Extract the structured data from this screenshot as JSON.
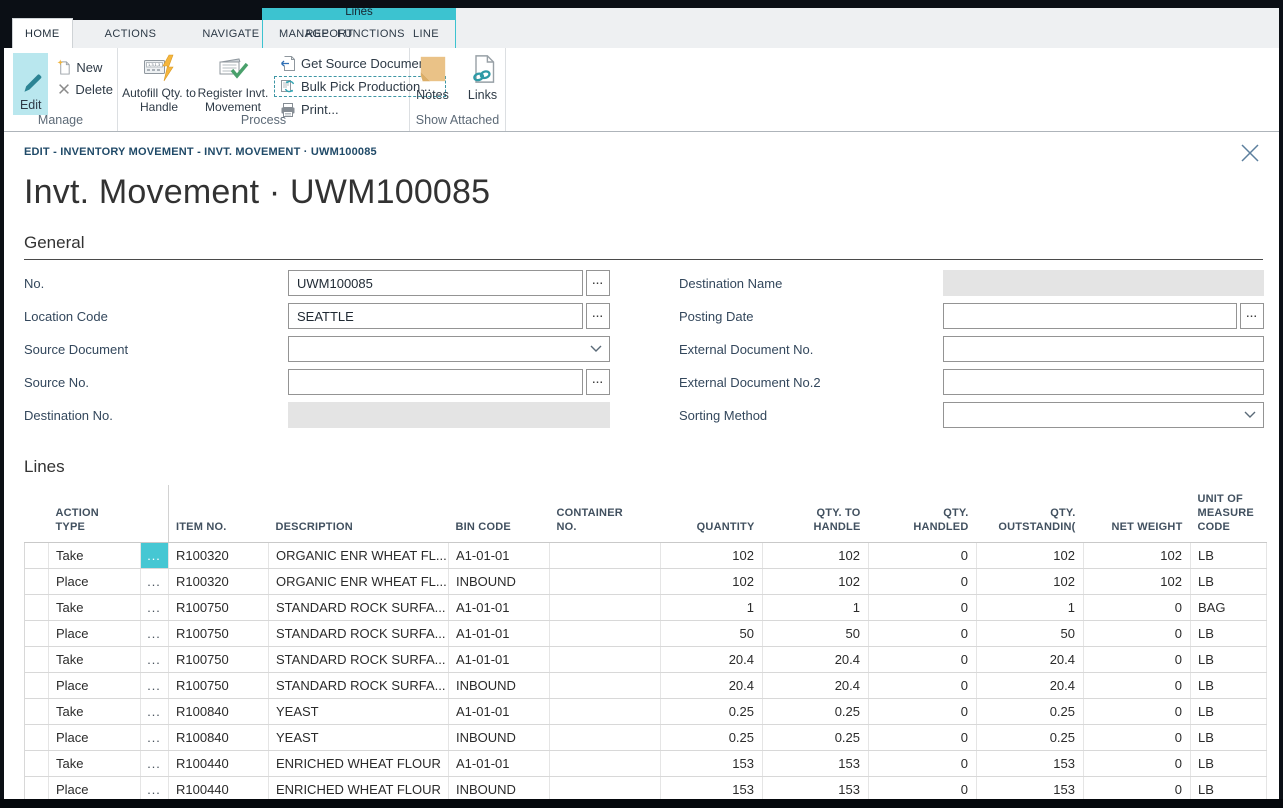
{
  "chrome": {
    "close": "close-window"
  },
  "ribbon": {
    "tabs": [
      "HOME",
      "ACTIONS",
      "NAVIGATE",
      "REPORT"
    ],
    "context_group": {
      "title": "Lines",
      "tabs": [
        "MANAGE",
        "FUNCTIONS",
        "LINE"
      ]
    },
    "buttons": {
      "edit": "Edit",
      "new": "New",
      "delete": "Delete",
      "autofill": "Autofill Qty. to Handle",
      "register": "Register Invt. Movement",
      "get_source": "Get Source Document...",
      "bulk_pick": "Bulk Pick Production...",
      "print": "Print...",
      "notes": "Notes",
      "links": "Links"
    },
    "group_labels": {
      "manage": "Manage",
      "process": "Process",
      "show_attached": "Show Attached"
    }
  },
  "page": {
    "breadcrumb": "EDIT - INVENTORY MOVEMENT - INVT. MOVEMENT · UWM100085",
    "title": "Invt. Movement · UWM100085"
  },
  "general": {
    "section_title": "General",
    "left": [
      {
        "label": "No.",
        "value": "UWM100085",
        "type": "text-assist"
      },
      {
        "label": "Location Code",
        "value": "SEATTLE",
        "type": "text-assist"
      },
      {
        "label": "Source Document",
        "value": "",
        "type": "dropdown"
      },
      {
        "label": "Source No.",
        "value": "",
        "type": "text-assist"
      },
      {
        "label": "Destination No.",
        "value": "",
        "type": "disabled"
      }
    ],
    "right": [
      {
        "label": "Destination Name",
        "value": "",
        "type": "disabled"
      },
      {
        "label": "Posting Date",
        "value": "",
        "type": "text-assist"
      },
      {
        "label": "External Document No.",
        "value": "",
        "type": "text"
      },
      {
        "label": "External Document No.2",
        "value": "",
        "type": "text"
      },
      {
        "label": "Sorting Method",
        "value": "",
        "type": "dropdown"
      }
    ]
  },
  "lines": {
    "section_title": "Lines",
    "columns": [
      {
        "id": "select",
        "label": ""
      },
      {
        "id": "action_type",
        "label": "ACTION TYPE"
      },
      {
        "id": "row_menu",
        "label": ""
      },
      {
        "id": "item_no",
        "label": "ITEM NO."
      },
      {
        "id": "description",
        "label": "DESCRIPTION"
      },
      {
        "id": "bin_code",
        "label": "BIN CODE"
      },
      {
        "id": "container_no",
        "label": "CONTAINER NO."
      },
      {
        "id": "quantity",
        "label": "QUANTITY"
      },
      {
        "id": "qty_to_handle",
        "label": "QTY. TO HANDLE"
      },
      {
        "id": "qty_handled",
        "label": "QTY. HANDLED"
      },
      {
        "id": "qty_outstanding",
        "label": "QTY. OUTSTANDIN("
      },
      {
        "id": "net_weight",
        "label": "NET WEIGHT"
      },
      {
        "id": "unit_of_measure_code",
        "label": "UNIT OF MEASURE CODE"
      }
    ],
    "rows": [
      {
        "action_type": "Take",
        "item_no": "R100320",
        "description": "ORGANIC ENR WHEAT FL...",
        "bin_code": "A1-01-01",
        "container_no": "",
        "quantity": "102",
        "qty_to_handle": "102",
        "qty_handled": "0",
        "qty_outstanding": "102",
        "net_weight": "102",
        "unit_of_measure_code": "LB",
        "selected": true
      },
      {
        "action_type": "Place",
        "item_no": "R100320",
        "description": "ORGANIC ENR WHEAT FL...",
        "bin_code": "INBOUND",
        "container_no": "",
        "quantity": "102",
        "qty_to_handle": "102",
        "qty_handled": "0",
        "qty_outstanding": "102",
        "net_weight": "102",
        "unit_of_measure_code": "LB",
        "selected": false
      },
      {
        "action_type": "Take",
        "item_no": "R100750",
        "description": "STANDARD ROCK SURFA...",
        "bin_code": "A1-01-01",
        "container_no": "",
        "quantity": "1",
        "qty_to_handle": "1",
        "qty_handled": "0",
        "qty_outstanding": "1",
        "net_weight": "0",
        "unit_of_measure_code": "BAG",
        "selected": false
      },
      {
        "action_type": "Place",
        "item_no": "R100750",
        "description": "STANDARD ROCK SURFA...",
        "bin_code": "A1-01-01",
        "container_no": "",
        "quantity": "50",
        "qty_to_handle": "50",
        "qty_handled": "0",
        "qty_outstanding": "50",
        "net_weight": "0",
        "unit_of_measure_code": "LB",
        "selected": false
      },
      {
        "action_type": "Take",
        "item_no": "R100750",
        "description": "STANDARD ROCK SURFA...",
        "bin_code": "A1-01-01",
        "container_no": "",
        "quantity": "20.4",
        "qty_to_handle": "20.4",
        "qty_handled": "0",
        "qty_outstanding": "20.4",
        "net_weight": "0",
        "unit_of_measure_code": "LB",
        "selected": false
      },
      {
        "action_type": "Place",
        "item_no": "R100750",
        "description": "STANDARD ROCK SURFA...",
        "bin_code": "INBOUND",
        "container_no": "",
        "quantity": "20.4",
        "qty_to_handle": "20.4",
        "qty_handled": "0",
        "qty_outstanding": "20.4",
        "net_weight": "0",
        "unit_of_measure_code": "LB",
        "selected": false
      },
      {
        "action_type": "Take",
        "item_no": "R100840",
        "description": "YEAST",
        "bin_code": "A1-01-01",
        "container_no": "",
        "quantity": "0.25",
        "qty_to_handle": "0.25",
        "qty_handled": "0",
        "qty_outstanding": "0.25",
        "net_weight": "0",
        "unit_of_measure_code": "LB",
        "selected": false
      },
      {
        "action_type": "Place",
        "item_no": "R100840",
        "description": "YEAST",
        "bin_code": "INBOUND",
        "container_no": "",
        "quantity": "0.25",
        "qty_to_handle": "0.25",
        "qty_handled": "0",
        "qty_outstanding": "0.25",
        "net_weight": "0",
        "unit_of_measure_code": "LB",
        "selected": false
      },
      {
        "action_type": "Take",
        "item_no": "R100440",
        "description": "ENRICHED WHEAT FLOUR",
        "bin_code": "A1-01-01",
        "container_no": "",
        "quantity": "153",
        "qty_to_handle": "153",
        "qty_handled": "0",
        "qty_outstanding": "153",
        "net_weight": "0",
        "unit_of_measure_code": "LB",
        "selected": false
      },
      {
        "action_type": "Place",
        "item_no": "R100440",
        "description": "ENRICHED WHEAT FLOUR",
        "bin_code": "INBOUND",
        "container_no": "",
        "quantity": "153",
        "qty_to_handle": "153",
        "qty_handled": "0",
        "qty_outstanding": "153",
        "net_weight": "0",
        "unit_of_measure_code": "LB",
        "selected": false
      }
    ]
  },
  "ui": {
    "assist_ellipsis": "...",
    "cell_menu_dots": "..."
  },
  "colors": {
    "frame": "#0b0f15",
    "contextual_tab": "#3cc3d0",
    "edit_highlight": "#b9e7ee",
    "selected_cell": "#46c7d3",
    "notes_icon": "#eac287",
    "breadcrumb_text": "#204a68",
    "accent_teal": "#2c8494"
  }
}
